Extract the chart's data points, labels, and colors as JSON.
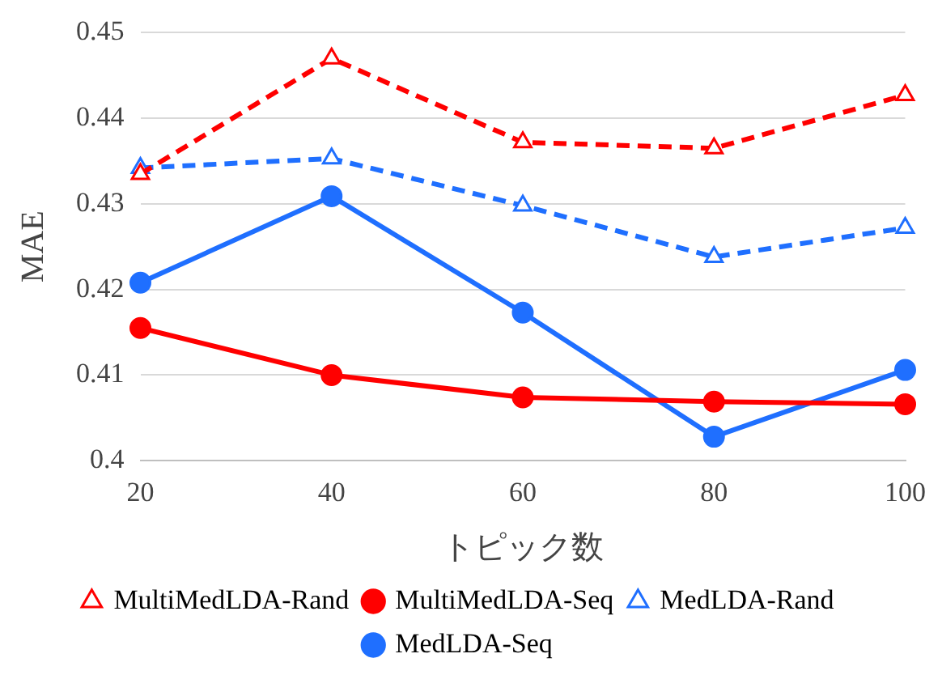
{
  "chart_data": {
    "type": "line",
    "xlabel": "トピック数",
    "ylabel": "MAE",
    "categories": [
      "20",
      "40",
      "60",
      "80",
      "100"
    ],
    "ylim": [
      0.4,
      0.45
    ],
    "yticks": [
      0.4,
      0.41,
      0.42,
      0.43,
      0.44,
      0.45
    ],
    "grid": "y",
    "legend": "bottom",
    "series": [
      {
        "name": "MultiMedLDA-Rand",
        "color": "#ff0000",
        "line_style": "dashed",
        "marker": "triangle",
        "values": [
          0.4335,
          0.447,
          0.4372,
          0.4365,
          0.4427
        ]
      },
      {
        "name": "MultiMedLDA-Seq",
        "color": "#ff0000",
        "line_style": "solid",
        "marker": "circle",
        "values": [
          0.4155,
          0.41,
          0.4074,
          0.4069,
          0.4066
        ]
      },
      {
        "name": "MedLDA-Rand",
        "color": "#1f6fff",
        "line_style": "dashed",
        "marker": "triangle",
        "values": [
          0.4342,
          0.4353,
          0.4298,
          0.4238,
          0.4272
        ]
      },
      {
        "name": "MedLDA-Seq",
        "color": "#1f6fff",
        "line_style": "solid",
        "marker": "circle",
        "values": [
          0.4208,
          0.4309,
          0.4173,
          0.4028,
          0.4106
        ]
      }
    ]
  }
}
